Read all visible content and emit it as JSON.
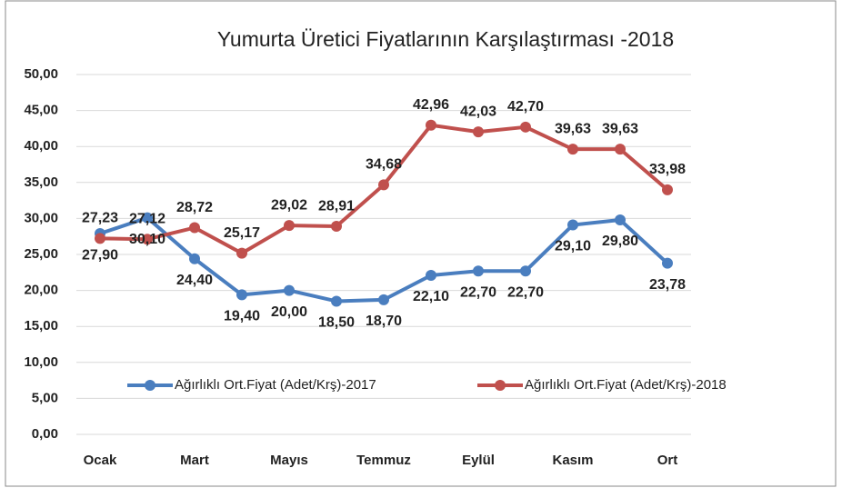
{
  "chart_data": {
    "type": "line",
    "title": "Yumurta Üretici Fiyatlarının Karşılaştırması -2018",
    "categories": [
      "Ocak",
      null,
      "Mart",
      null,
      "Mayıs",
      null,
      "Temmuz",
      null,
      "Eylül",
      null,
      "Kasım",
      null,
      "Ort"
    ],
    "series": [
      {
        "name": "Ağırlıklı Ort.Fiyat (Adet/Krş)-2017",
        "color": "#4a7ebf",
        "values": [
          27.9,
          30.1,
          24.4,
          19.4,
          20.0,
          18.5,
          18.7,
          22.1,
          22.7,
          22.7,
          29.1,
          29.8,
          23.78
        ],
        "value_labels": [
          "27,90",
          "30,10",
          "24,40",
          "19,40",
          "20,00",
          "18,50",
          "18,70",
          "22,10",
          "22,70",
          "22,70",
          "29,10",
          "29,80",
          "23,78"
        ]
      },
      {
        "name": "Ağırlıklı Ort.Fiyat (Adet/Krş)-2018",
        "color": "#c0504d",
        "values": [
          27.23,
          27.12,
          28.72,
          25.17,
          29.02,
          28.91,
          34.68,
          42.96,
          42.03,
          42.7,
          39.63,
          39.63,
          33.98
        ],
        "value_labels": [
          "27,23",
          "27,12",
          "28,72",
          "25,17",
          "29,02",
          "28,91",
          "34,68",
          "42,96",
          "42,03",
          "42,70",
          "39,63",
          "39,63",
          "33,98"
        ]
      }
    ],
    "ylim": [
      0,
      50
    ],
    "yticks": [
      {
        "value": 0,
        "label": "0,00"
      },
      {
        "value": 5,
        "label": "5,00"
      },
      {
        "value": 10,
        "label": "10,00"
      },
      {
        "value": 15,
        "label": "15,00"
      },
      {
        "value": 20,
        "label": "20,00"
      },
      {
        "value": 25,
        "label": "25,00"
      },
      {
        "value": 30,
        "label": "30,00"
      },
      {
        "value": 35,
        "label": "35,00"
      },
      {
        "value": 40,
        "label": "40,00"
      },
      {
        "value": 45,
        "label": "45,00"
      },
      {
        "value": 50,
        "label": "50,00"
      }
    ],
    "grid": true
  }
}
